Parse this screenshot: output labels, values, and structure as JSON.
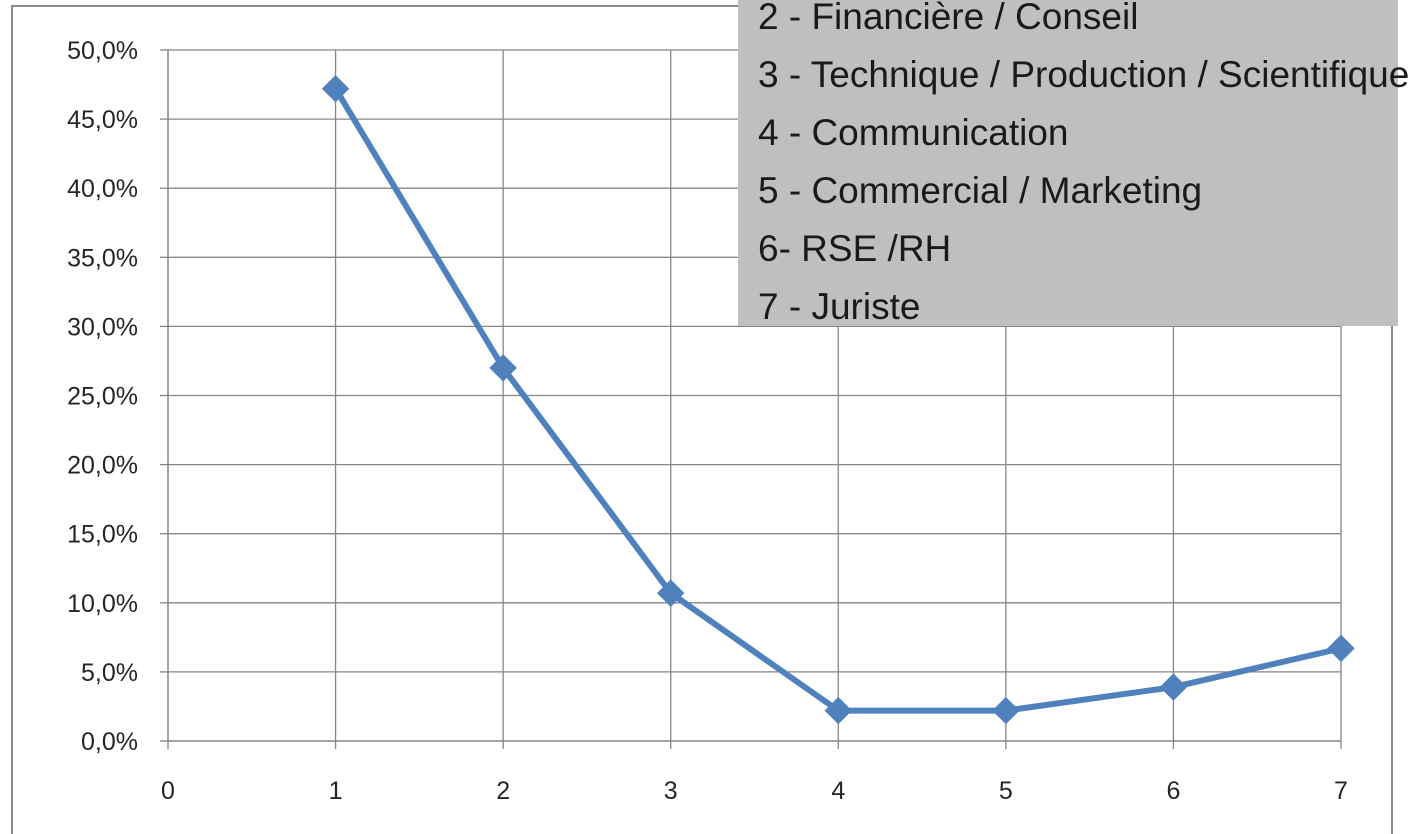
{
  "chart_data": {
    "type": "line",
    "title": "",
    "xlabel": "",
    "ylabel": "",
    "x": [
      1,
      2,
      3,
      4,
      5,
      6,
      7
    ],
    "series": [
      {
        "values": [
          47.2,
          27.0,
          10.7,
          2.2,
          2.2,
          3.9,
          6.7
        ]
      }
    ],
    "xlim": [
      0,
      7
    ],
    "ylim": [
      0,
      50
    ],
    "x_ticks": [
      "0",
      "1",
      "2",
      "3",
      "4",
      "5",
      "6",
      "7"
    ],
    "y_ticks": [
      "0,0%",
      "5,0%",
      "10,0%",
      "15,0%",
      "20,0%",
      "25,0%",
      "30,0%",
      "35,0%",
      "40,0%",
      "45,0%",
      "50,0%"
    ],
    "grid": true,
    "marker": "diamond",
    "colors": {
      "series": "#4f81bd",
      "grid": "#868686",
      "legend_bg": "#bfbfbf"
    }
  },
  "legend_box": {
    "lines": [
      "2 - Financière / Conseil",
      "3 - Technique / Production / Scientifique",
      "4 - Communication",
      "5 - Commercial / Marketing",
      "6- RSE /RH",
      "7 - Juriste"
    ]
  }
}
